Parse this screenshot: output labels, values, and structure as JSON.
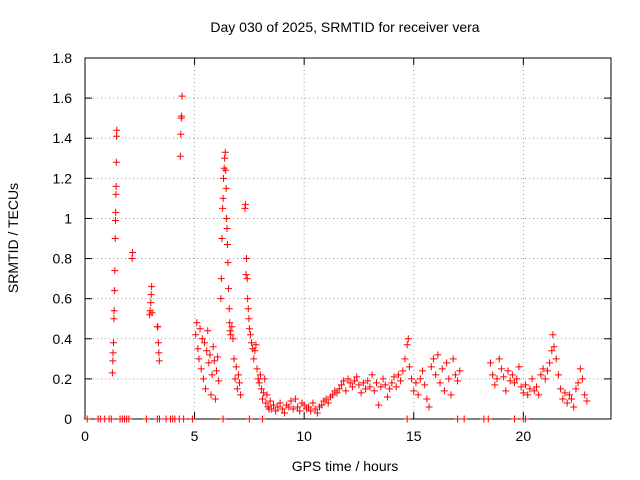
{
  "chart_data": {
    "type": "scatter",
    "title": "Day 030 of 2025, SRMTID for receiver vera",
    "xlabel": "GPS time / hours",
    "ylabel": "SRMTID / TECUs",
    "xlim": [
      0,
      24
    ],
    "ylim": [
      0,
      1.8
    ],
    "x_ticks": [
      0,
      5,
      10,
      15,
      20
    ],
    "y_ticks": [
      0,
      0.2,
      0.4,
      0.6,
      0.8,
      1,
      1.2,
      1.4,
      1.6,
      1.8
    ],
    "x_tick_labels": [
      "0",
      "5",
      "10",
      "15",
      "20"
    ],
    "y_tick_labels": [
      "0",
      "0.2",
      "0.4",
      "0.6",
      "0.8",
      "1",
      "1.2",
      "1.4",
      "1.6",
      "1.8"
    ],
    "grid": true,
    "marker": "+",
    "color": "#ff0000",
    "series": [
      {
        "name": "SRMTID",
        "points": [
          [
            0.1,
            0
          ],
          [
            0.6,
            0
          ],
          [
            0.7,
            0
          ],
          [
            0.9,
            0
          ],
          [
            1.1,
            0
          ],
          [
            1.2,
            0
          ],
          [
            1.6,
            0
          ],
          [
            1.7,
            0
          ],
          [
            1.8,
            0
          ],
          [
            1.9,
            0
          ],
          [
            2.0,
            0
          ],
          [
            2.8,
            0
          ],
          [
            3.3,
            0
          ],
          [
            3.4,
            0
          ],
          [
            3.7,
            0
          ],
          [
            3.9,
            0
          ],
          [
            4.0,
            0
          ],
          [
            4.1,
            0
          ],
          [
            4.3,
            0
          ],
          [
            4.5,
            0
          ],
          [
            4.9,
            0
          ],
          [
            6.3,
            0
          ],
          [
            7.5,
            0
          ],
          [
            8.1,
            0
          ],
          [
            14.7,
            0
          ],
          [
            17.0,
            0
          ],
          [
            17.3,
            0
          ],
          [
            18.2,
            0
          ],
          [
            18.4,
            0
          ],
          [
            19.6,
            0
          ],
          [
            20.0,
            0
          ],
          [
            20.1,
            0
          ],
          [
            1.25,
            0.23
          ],
          [
            1.27,
            0.29
          ],
          [
            1.28,
            0.33
          ],
          [
            1.3,
            0.38
          ],
          [
            1.32,
            0.5
          ],
          [
            1.33,
            0.54
          ],
          [
            1.35,
            0.64
          ],
          [
            1.36,
            0.74
          ],
          [
            1.38,
            0.9
          ],
          [
            1.39,
            0.99
          ],
          [
            1.4,
            1.03
          ],
          [
            1.41,
            1.12
          ],
          [
            1.42,
            1.16
          ],
          [
            1.43,
            1.28
          ],
          [
            1.44,
            1.41
          ],
          [
            1.45,
            1.44
          ],
          [
            2.15,
            0.8
          ],
          [
            2.17,
            0.83
          ],
          [
            2.95,
            0.52
          ],
          [
            2.97,
            0.54
          ],
          [
            3.0,
            0.58
          ],
          [
            3.02,
            0.62
          ],
          [
            3.04,
            0.66
          ],
          [
            3.06,
            0.53
          ],
          [
            3.3,
            0.46
          ],
          [
            3.32,
            0.46
          ],
          [
            3.35,
            0.38
          ],
          [
            3.37,
            0.33
          ],
          [
            3.39,
            0.29
          ],
          [
            4.35,
            1.31
          ],
          [
            4.37,
            1.42
          ],
          [
            4.39,
            1.5
          ],
          [
            4.41,
            1.51
          ],
          [
            4.43,
            1.61
          ],
          [
            5.05,
            0.42
          ],
          [
            5.1,
            0.48
          ],
          [
            5.15,
            0.35
          ],
          [
            5.2,
            0.3
          ],
          [
            5.25,
            0.45
          ],
          [
            5.3,
            0.25
          ],
          [
            5.35,
            0.4
          ],
          [
            5.4,
            0.2
          ],
          [
            5.45,
            0.38
          ],
          [
            5.5,
            0.15
          ],
          [
            5.55,
            0.34
          ],
          [
            5.6,
            0.44
          ],
          [
            5.65,
            0.28
          ],
          [
            5.7,
            0.32
          ],
          [
            5.75,
            0.12
          ],
          [
            5.8,
            0.22
          ],
          [
            5.85,
            0.36
          ],
          [
            5.9,
            0.29
          ],
          [
            5.95,
            0.1
          ],
          [
            6.0,
            0.24
          ],
          [
            6.05,
            0.31
          ],
          [
            6.1,
            0.19
          ],
          [
            6.2,
            0.6
          ],
          [
            6.22,
            0.7
          ],
          [
            6.25,
            0.9
          ],
          [
            6.28,
            1.05
          ],
          [
            6.3,
            1.1
          ],
          [
            6.32,
            1.2
          ],
          [
            6.35,
            1.25
          ],
          [
            6.37,
            1.3
          ],
          [
            6.4,
            1.33
          ],
          [
            6.42,
            1.24
          ],
          [
            6.44,
            1.15
          ],
          [
            6.46,
            1.0
          ],
          [
            6.48,
            0.95
          ],
          [
            6.5,
            0.87
          ],
          [
            6.52,
            0.78
          ],
          [
            6.55,
            0.65
          ],
          [
            6.58,
            0.55
          ],
          [
            6.6,
            0.48
          ],
          [
            6.62,
            0.44
          ],
          [
            6.65,
            0.42
          ],
          [
            6.7,
            0.46
          ],
          [
            6.75,
            0.4
          ],
          [
            6.8,
            0.3
          ],
          [
            6.85,
            0.2
          ],
          [
            6.9,
            0.26
          ],
          [
            6.95,
            0.15
          ],
          [
            7.0,
            0.22
          ],
          [
            7.05,
            0.18
          ],
          [
            7.1,
            0.12
          ],
          [
            7.3,
            1.05
          ],
          [
            7.32,
            1.07
          ],
          [
            7.35,
            0.72
          ],
          [
            7.37,
            0.8
          ],
          [
            7.4,
            0.7
          ],
          [
            7.42,
            0.6
          ],
          [
            7.45,
            0.55
          ],
          [
            7.48,
            0.5
          ],
          [
            7.5,
            0.45
          ],
          [
            7.55,
            0.42
          ],
          [
            7.6,
            0.38
          ],
          [
            7.65,
            0.35
          ],
          [
            7.7,
            0.3
          ],
          [
            7.75,
            0.34
          ],
          [
            7.8,
            0.37
          ],
          [
            7.85,
            0.25
          ],
          [
            7.9,
            0.2
          ],
          [
            7.95,
            0.18
          ],
          [
            8.0,
            0.22
          ],
          [
            8.05,
            0.15
          ],
          [
            8.1,
            0.1
          ],
          [
            8.15,
            0.13
          ],
          [
            8.2,
            0.2
          ],
          [
            8.25,
            0.08
          ],
          [
            8.3,
            0.12
          ],
          [
            8.35,
            0.06
          ],
          [
            8.4,
            0.05
          ],
          [
            8.45,
            0.09
          ],
          [
            8.5,
            0.05
          ],
          [
            8.6,
            0.07
          ],
          [
            8.7,
            0.04
          ],
          [
            8.8,
            0.06
          ],
          [
            8.9,
            0.08
          ],
          [
            9.0,
            0.05
          ],
          [
            9.1,
            0.03
          ],
          [
            9.2,
            0.07
          ],
          [
            9.3,
            0.06
          ],
          [
            9.4,
            0.09
          ],
          [
            9.5,
            0.05
          ],
          [
            9.6,
            0.1
          ],
          [
            9.7,
            0.06
          ],
          [
            9.8,
            0.04
          ],
          [
            9.9,
            0.08
          ],
          [
            10.0,
            0.07
          ],
          [
            10.1,
            0.05
          ],
          [
            10.2,
            0.06
          ],
          [
            10.3,
            0.04
          ],
          [
            10.4,
            0.08
          ],
          [
            10.5,
            0.05
          ],
          [
            10.6,
            0.03
          ],
          [
            10.7,
            0.06
          ],
          [
            10.8,
            0.07
          ],
          [
            10.9,
            0.09
          ],
          [
            11.0,
            0.1
          ],
          [
            11.1,
            0.08
          ],
          [
            11.2,
            0.11
          ],
          [
            11.3,
            0.12
          ],
          [
            11.4,
            0.14
          ],
          [
            11.5,
            0.13
          ],
          [
            11.6,
            0.15
          ],
          [
            11.7,
            0.17
          ],
          [
            11.8,
            0.19
          ],
          [
            11.9,
            0.14
          ],
          [
            12.0,
            0.2
          ],
          [
            12.1,
            0.18
          ],
          [
            12.2,
            0.16
          ],
          [
            12.3,
            0.19
          ],
          [
            12.4,
            0.21
          ],
          [
            12.5,
            0.17
          ],
          [
            12.6,
            0.13
          ],
          [
            12.7,
            0.18
          ],
          [
            12.8,
            0.15
          ],
          [
            12.9,
            0.19
          ],
          [
            13.0,
            0.16
          ],
          [
            13.1,
            0.22
          ],
          [
            13.2,
            0.14
          ],
          [
            13.3,
            0.18
          ],
          [
            13.4,
            0.07
          ],
          [
            13.5,
            0.16
          ],
          [
            13.6,
            0.2
          ],
          [
            13.7,
            0.17
          ],
          [
            13.8,
            0.11
          ],
          [
            13.9,
            0.15
          ],
          [
            14.0,
            0.18
          ],
          [
            14.1,
            0.21
          ],
          [
            14.2,
            0.16
          ],
          [
            14.3,
            0.22
          ],
          [
            14.4,
            0.19
          ],
          [
            14.5,
            0.24
          ],
          [
            14.6,
            0.3
          ],
          [
            14.7,
            0.37
          ],
          [
            14.75,
            0.4
          ],
          [
            14.8,
            0.26
          ],
          [
            14.9,
            0.2
          ],
          [
            15.0,
            0.14
          ],
          [
            15.1,
            0.18
          ],
          [
            15.2,
            0.12
          ],
          [
            15.3,
            0.2
          ],
          [
            15.4,
            0.24
          ],
          [
            15.5,
            0.17
          ],
          [
            15.6,
            0.1
          ],
          [
            15.7,
            0.06
          ],
          [
            15.8,
            0.26
          ],
          [
            15.9,
            0.3
          ],
          [
            16.0,
            0.22
          ],
          [
            16.1,
            0.32
          ],
          [
            16.2,
            0.18
          ],
          [
            16.3,
            0.25
          ],
          [
            16.4,
            0.14
          ],
          [
            16.5,
            0.28
          ],
          [
            16.6,
            0.2
          ],
          [
            16.7,
            0.12
          ],
          [
            16.8,
            0.3
          ],
          [
            16.9,
            0.22
          ],
          [
            17.0,
            0.19
          ],
          [
            17.1,
            0.24
          ],
          [
            18.5,
            0.28
          ],
          [
            18.6,
            0.22
          ],
          [
            18.7,
            0.17
          ],
          [
            18.8,
            0.2
          ],
          [
            18.9,
            0.3
          ],
          [
            19.0,
            0.25
          ],
          [
            19.1,
            0.21
          ],
          [
            19.2,
            0.14
          ],
          [
            19.3,
            0.24
          ],
          [
            19.4,
            0.19
          ],
          [
            19.5,
            0.22
          ],
          [
            19.6,
            0.18
          ],
          [
            19.7,
            0.2
          ],
          [
            19.8,
            0.26
          ],
          [
            19.9,
            0.16
          ],
          [
            20.0,
            0.13
          ],
          [
            20.1,
            0.17
          ],
          [
            20.2,
            0.12
          ],
          [
            20.3,
            0.15
          ],
          [
            20.4,
            0.2
          ],
          [
            20.5,
            0.14
          ],
          [
            20.6,
            0.16
          ],
          [
            20.7,
            0.12
          ],
          [
            20.8,
            0.22
          ],
          [
            20.9,
            0.25
          ],
          [
            21.0,
            0.2
          ],
          [
            21.1,
            0.24
          ],
          [
            21.2,
            0.28
          ],
          [
            21.3,
            0.34
          ],
          [
            21.35,
            0.42
          ],
          [
            21.4,
            0.36
          ],
          [
            21.5,
            0.3
          ],
          [
            21.6,
            0.22
          ],
          [
            21.7,
            0.15
          ],
          [
            21.8,
            0.1
          ],
          [
            21.9,
            0.13
          ],
          [
            22.0,
            0.08
          ],
          [
            22.1,
            0.12
          ],
          [
            22.2,
            0.1
          ],
          [
            22.3,
            0.06
          ],
          [
            22.4,
            0.15
          ],
          [
            22.5,
            0.18
          ],
          [
            22.6,
            0.25
          ],
          [
            22.7,
            0.2
          ],
          [
            22.8,
            0.12
          ],
          [
            22.9,
            0.09
          ]
        ]
      }
    ]
  }
}
